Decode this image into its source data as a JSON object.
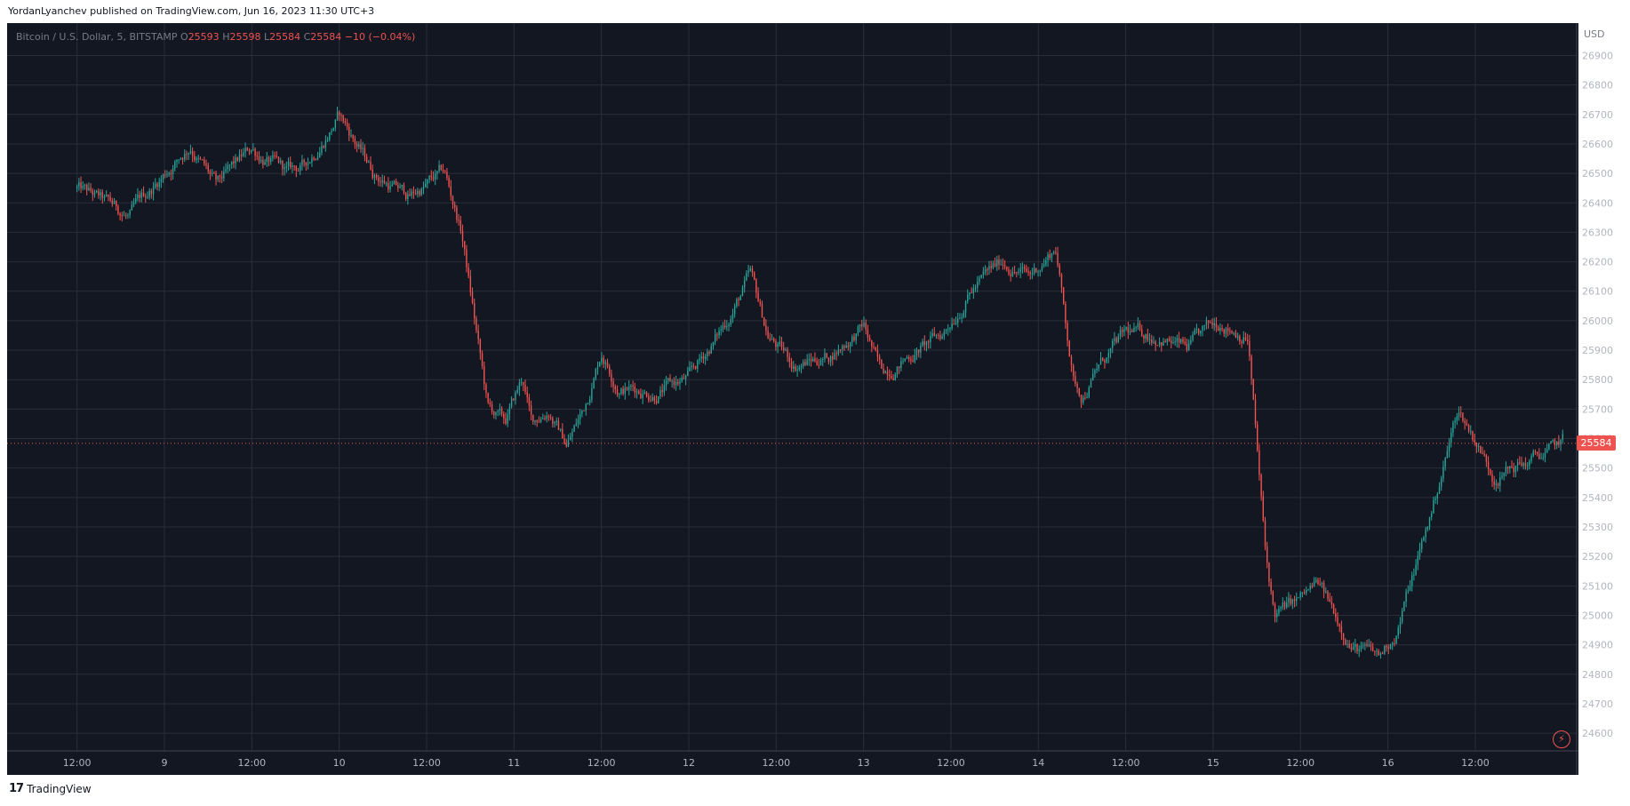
{
  "header": {
    "published": "YordanLyanchev published on TradingView.com, Jun 16, 2023 11:30 UTC+3"
  },
  "legend": {
    "symbol": "Bitcoin / U.S. Dollar, 5, BITSTAMP",
    "o_label": "O",
    "o": "25593",
    "h_label": "H",
    "h": "25598",
    "l_label": "L",
    "l": "25584",
    "c_label": "C",
    "c": "25584",
    "change": "−10 (−0.04%)"
  },
  "footer": {
    "brand": "TradingView"
  },
  "price_tag": "25584",
  "colors": {
    "background": "#131722",
    "grid": "#2a2e39",
    "up": "#26a69a",
    "down": "#ef5350",
    "text": "#b2b5be"
  },
  "chart_data": {
    "type": "line",
    "currency_label": "USD",
    "y_ticks": [
      24600,
      24700,
      24800,
      24900,
      25000,
      25100,
      25200,
      25300,
      25400,
      25500,
      25600,
      25700,
      25800,
      25900,
      26000,
      26100,
      26200,
      26300,
      26400,
      26500,
      26600,
      26700,
      26800,
      26900
    ],
    "ylim": [
      24540,
      27010
    ],
    "x_ticks": [
      "12:00",
      "9",
      "12:00",
      "10",
      "12:00",
      "11",
      "12:00",
      "12",
      "12:00",
      "13",
      "12:00",
      "14",
      "12:00",
      "15",
      "12:00",
      "16",
      "12:00"
    ],
    "last_price": 25584,
    "series": [
      {
        "x_day": [
          8.0,
          8.3,
          8.5,
          8.65,
          8.8,
          9.0,
          9.2,
          9.3,
          9.5,
          9.7,
          9.9,
          10.1,
          10.2,
          10.3,
          10.35,
          10.45,
          10.55,
          10.6,
          10.7,
          10.8,
          10.9,
          11.0,
          11.1,
          11.3,
          11.5,
          11.7,
          11.85,
          11.95,
          12.1,
          12.3,
          12.5,
          12.6,
          12.8,
          12.95,
          13.1,
          13.3,
          13.45,
          13.6,
          13.7,
          13.75,
          13.85,
          14.0,
          14.2,
          14.35,
          14.55,
          14.7,
          14.8,
          14.85,
          15.0,
          15.1,
          15.3,
          15.45,
          15.55,
          15.6,
          15.75,
          15.9,
          16.0,
          16.1,
          16.3,
          16.45,
          16.5
        ],
        "price": [
          26450,
          26350,
          26500,
          26600,
          26450,
          26580,
          26500,
          26520,
          26700,
          26500,
          26420,
          26500,
          26300,
          25900,
          25700,
          25650,
          25800,
          25650,
          25700,
          25580,
          25700,
          25900,
          25780,
          25760,
          25800,
          25980,
          26150,
          25950,
          25850,
          25880,
          25980,
          25820,
          25900,
          25950,
          26100,
          26200,
          26150,
          26250,
          25800,
          25750,
          25850,
          25950,
          25950,
          25900,
          26000,
          25950,
          25200,
          25000,
          25050,
          25100,
          24900,
          24850,
          24950,
          25050,
          25350,
          25700,
          25600,
          25480,
          25520,
          25560,
          25584
        ]
      }
    ]
  }
}
